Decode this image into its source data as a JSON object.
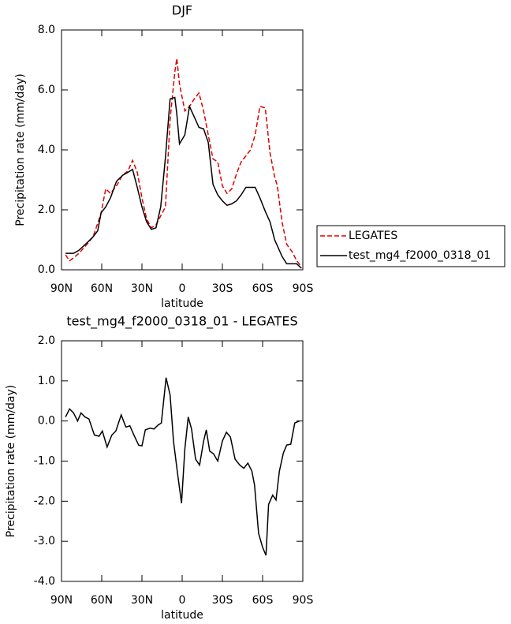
{
  "chart_data": [
    {
      "type": "line",
      "title": "DJF",
      "xlabel": "latitude",
      "ylabel": "Precipitation rate (mm/day)",
      "x": [
        87,
        84,
        81,
        77,
        71,
        66.5,
        63,
        60.5,
        57,
        53.5,
        49,
        44.5,
        40.5,
        37,
        33.5,
        30,
        26.5,
        23,
        19.5,
        16,
        12.5,
        9,
        5.5,
        4,
        2,
        -2,
        -5.5,
        -9,
        -12.5,
        -16,
        -19.5,
        -23,
        -26.5,
        -30,
        -33.5,
        -37,
        -40.5,
        -44,
        -47.5,
        -51,
        -54.5,
        -58,
        -62,
        -65.5,
        -69,
        -71,
        -74.5,
        -78,
        -82,
        -85.5,
        -89
      ],
      "series": [
        {
          "name": "LEGATES",
          "color": "#dd0000",
          "dash": "dashed",
          "values": [
            0.5,
            0.3,
            0.4,
            0.55,
            0.85,
            1.1,
            1.55,
            1.9,
            2.7,
            2.55,
            2.8,
            3.15,
            3.3,
            3.65,
            3.25,
            2.4,
            1.7,
            1.4,
            1.5,
            1.8,
            2.1,
            5.0,
            6.6,
            7.05,
            6.2,
            5.3,
            5.45,
            5.7,
            5.9,
            5.3,
            4.5,
            3.7,
            3.6,
            2.8,
            2.55,
            2.7,
            3.2,
            3.6,
            3.8,
            4.0,
            4.5,
            5.45,
            5.4,
            3.9,
            3.1,
            2.8,
            1.6,
            0.85,
            0.6,
            0.3,
            0.1
          ]
        },
        {
          "name": "test_mg4_f2000_0318_01",
          "color": "#000000",
          "dash": "solid",
          "values": [
            0.55,
            0.55,
            0.55,
            0.65,
            0.9,
            1.1,
            1.3,
            1.9,
            2.1,
            2.4,
            2.95,
            3.15,
            3.25,
            3.35,
            2.75,
            2.1,
            1.6,
            1.35,
            1.4,
            2.1,
            3.75,
            5.7,
            5.75,
            5.2,
            4.2,
            4.5,
            5.45,
            5.1,
            4.75,
            4.7,
            4.25,
            2.85,
            2.5,
            2.3,
            2.15,
            2.2,
            2.3,
            2.5,
            2.75,
            2.75,
            2.75,
            2.4,
            1.95,
            1.6,
            1.0,
            0.8,
            0.45,
            0.2,
            0.2,
            0.2,
            0.05
          ]
        }
      ],
      "xlim": [
        90,
        -90
      ],
      "xticks": [
        {
          "value": 90,
          "label": "90N"
        },
        {
          "value": 60,
          "label": "60N"
        },
        {
          "value": 30,
          "label": "30N"
        },
        0,
        {
          "value": -30,
          "label": "30S"
        },
        {
          "value": -60,
          "label": "60S"
        },
        {
          "value": -90,
          "label": "90S"
        }
      ],
      "ylim": [
        0,
        8
      ],
      "yticks": [
        {
          "value": 0,
          "label": "0.0"
        },
        {
          "value": 2,
          "label": "2.0"
        },
        {
          "value": 4,
          "label": "4.0"
        },
        {
          "value": 6,
          "label": "6.0"
        },
        {
          "value": 8,
          "label": "8.0"
        }
      ],
      "legend": "right"
    },
    {
      "type": "line",
      "title": "test_mg4_f2000_0318_01 - LEGATES",
      "xlabel": "latitude",
      "ylabel": "Precipitation rate (mm/day)",
      "x": [
        87,
        84,
        81,
        78,
        75.5,
        72.5,
        69.5,
        65.5,
        62,
        59.5,
        56,
        52.5,
        49.5,
        45.5,
        42,
        39,
        36,
        32.5,
        30,
        27.5,
        24,
        21,
        18,
        15.5,
        12,
        9,
        6.5,
        3.5,
        0.5,
        -2,
        -4.5,
        -7,
        -10,
        -13,
        -16,
        -18,
        -20.5,
        -23.5,
        -26.5,
        -30,
        -33,
        -36,
        -39.5,
        -43,
        -46,
        -49,
        -52,
        -54,
        -57,
        -60,
        -62.5,
        -64.5,
        -67.5,
        -70,
        -72.5,
        -75.5,
        -78,
        -81,
        -84,
        -87.5
      ],
      "series": [
        {
          "name": null,
          "color": "#000000",
          "dash": "solid",
          "values": [
            0.1,
            0.3,
            0.2,
            0.0,
            0.2,
            0.1,
            0.05,
            -0.35,
            -0.38,
            -0.25,
            -0.65,
            -0.35,
            -0.25,
            0.15,
            -0.15,
            -0.12,
            -0.35,
            -0.6,
            -0.62,
            -0.22,
            -0.18,
            -0.2,
            -0.1,
            -0.05,
            1.08,
            0.65,
            -0.5,
            -1.3,
            -2.05,
            -0.7,
            0.1,
            -0.2,
            -0.95,
            -1.1,
            -0.5,
            -0.22,
            -0.75,
            -0.82,
            -1.0,
            -0.5,
            -0.28,
            -0.4,
            -0.95,
            -1.1,
            -1.18,
            -1.05,
            -1.25,
            -1.6,
            -2.8,
            -3.15,
            -3.35,
            -2.08,
            -1.85,
            -1.97,
            -1.25,
            -0.8,
            -0.6,
            -0.58,
            -0.05,
            0.0
          ]
        }
      ],
      "xlim": [
        90,
        -90
      ],
      "xticks": [
        {
          "value": 90,
          "label": "90N"
        },
        {
          "value": 60,
          "label": "60N"
        },
        {
          "value": 30,
          "label": "30N"
        },
        0,
        {
          "value": -30,
          "label": "30S"
        },
        {
          "value": -60,
          "label": "60S"
        },
        {
          "value": -90,
          "label": "90S"
        }
      ],
      "ylim": [
        -4,
        2
      ],
      "yticks": [
        {
          "value": -4,
          "label": "-4.0"
        },
        {
          "value": -3,
          "label": "-3.0"
        },
        {
          "value": -2,
          "label": "-2.0"
        },
        {
          "value": -1,
          "label": "-1.0"
        },
        {
          "value": 0,
          "label": "0.0"
        },
        {
          "value": 1,
          "label": "1.0"
        },
        {
          "value": 2,
          "label": "2.0"
        }
      ]
    }
  ]
}
